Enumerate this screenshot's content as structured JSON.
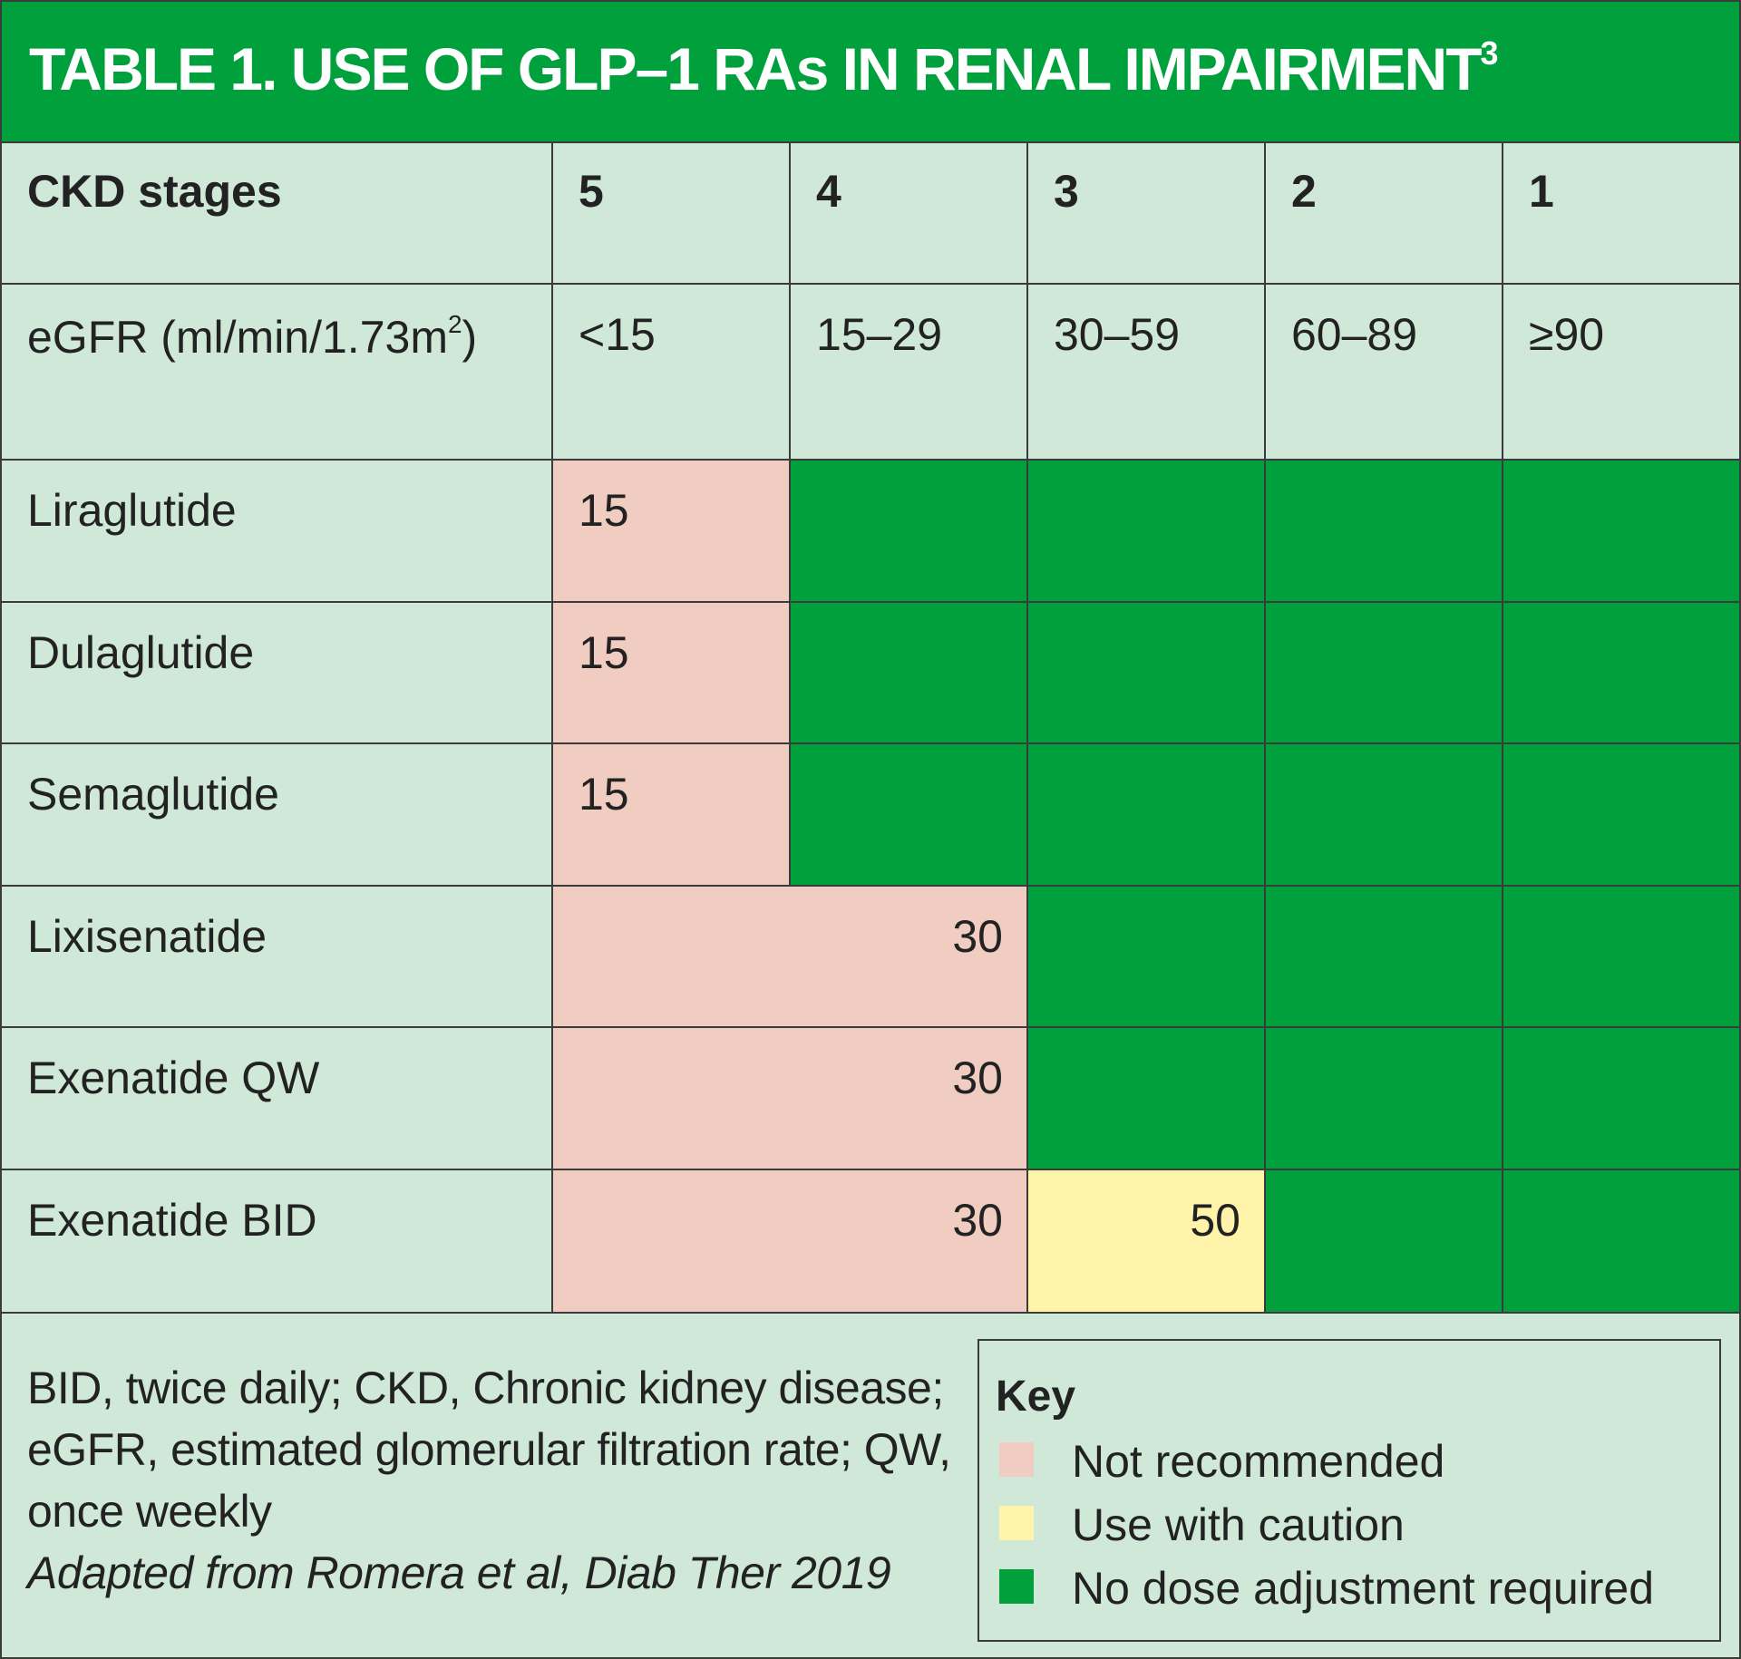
{
  "title": {
    "main": "TABLE 1. USE OF GLP–1 RAs IN RENAL IMPAIRMENT",
    "superscript": "3"
  },
  "colors": {
    "not_recommended": "#f0cdc0",
    "use_with_caution": "#fff4aa",
    "no_dose_adjustment": "#00a03c",
    "background": "#cfe8d8"
  },
  "table": {
    "header": {
      "label": "CKD stages",
      "stages": [
        "5",
        "4",
        "3",
        "2",
        "1"
      ]
    },
    "egfr_row": {
      "label": "eGFR (ml/min/1.73m",
      "label_sup": "2",
      "label_end": ")",
      "values": [
        "<15",
        "15–29",
        "30–59",
        "60–89",
        "≥90"
      ]
    },
    "rows": [
      {
        "drug": "Liraglutide",
        "not_rec_value": "15",
        "caution_value": ""
      },
      {
        "drug": "Dulaglutide",
        "not_rec_value": "15",
        "caution_value": ""
      },
      {
        "drug": "Semaglutide",
        "not_rec_value": "15",
        "caution_value": ""
      },
      {
        "drug": "Lixisenatide",
        "not_rec_value": "30",
        "caution_value": ""
      },
      {
        "drug": "Exenatide QW",
        "not_rec_value": "30",
        "caution_value": ""
      },
      {
        "drug": "Exenatide BID",
        "not_rec_value": "30",
        "caution_value": "50"
      }
    ]
  },
  "footer": {
    "abbreviations": "BID, twice daily; CKD, Chronic kidney disease; eGFR, estimated glomerular filtration rate; QW, once weekly",
    "source": "Adapted from Romera et al, Diab Ther 2019"
  },
  "key": {
    "title": "Key",
    "items": [
      "Not recommended",
      "Use with caution",
      "No dose adjustment required"
    ]
  }
}
